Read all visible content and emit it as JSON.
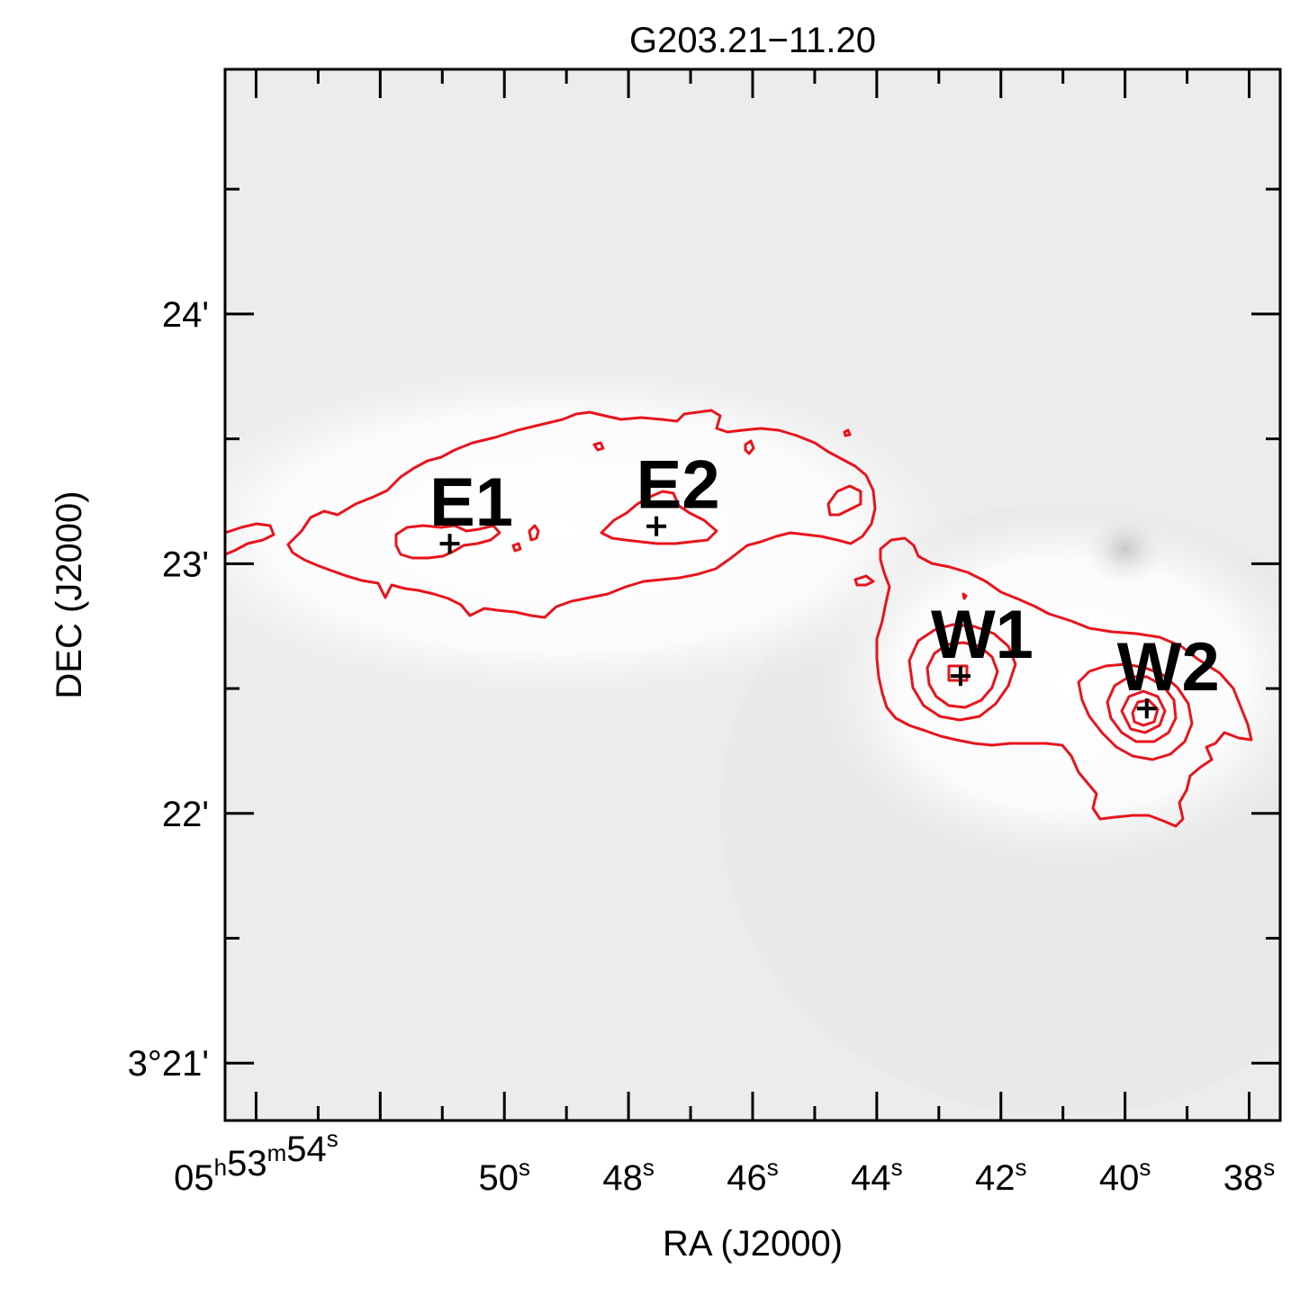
{
  "chart_data": {
    "type": "contour",
    "title": "G203.21−11.20",
    "xlabel": "RA (J2000)",
    "ylabel": "DEC (J2000)",
    "xlim": [
      54.5,
      37.5
    ],
    "ylim": [
      20.77,
      24.98
    ],
    "x_ticks": [
      {
        "value": 54,
        "parts": [
          [
            "05",
            "h"
          ],
          [
            "53",
            "m"
          ],
          [
            "54",
            "s"
          ]
        ]
      },
      {
        "value": 50,
        "parts": [
          [
            "50",
            "s"
          ]
        ]
      },
      {
        "value": 48,
        "parts": [
          [
            "48",
            "s"
          ]
        ]
      },
      {
        "value": 46,
        "parts": [
          [
            "46",
            "s"
          ]
        ]
      },
      {
        "value": 44,
        "parts": [
          [
            "44",
            "s"
          ]
        ]
      },
      {
        "value": 42,
        "parts": [
          [
            "42",
            "s"
          ]
        ]
      },
      {
        "value": 40,
        "parts": [
          [
            "40",
            "s"
          ]
        ]
      },
      {
        "value": 38,
        "parts": [
          [
            "38",
            "s"
          ]
        ]
      }
    ],
    "y_ticks": [
      {
        "value": 24,
        "label": "24'"
      },
      {
        "value": 23,
        "label": "23'"
      },
      {
        "value": 22,
        "label": "22'"
      },
      {
        "value": 21,
        "label": "3°21'"
      }
    ],
    "background": "grayscale intensity map",
    "contour_color": "#e8141c",
    "sources": [
      {
        "name": "E1",
        "ra_s": 50.88,
        "dec_arcmin": 23.08
      },
      {
        "name": "E2",
        "ra_s": 47.55,
        "dec_arcmin": 23.15
      },
      {
        "name": "W1",
        "ra_s": 42.65,
        "dec_arcmin": 22.55
      },
      {
        "name": "W2",
        "ra_s": 39.65,
        "dec_arcmin": 22.42
      }
    ],
    "grid": false
  }
}
